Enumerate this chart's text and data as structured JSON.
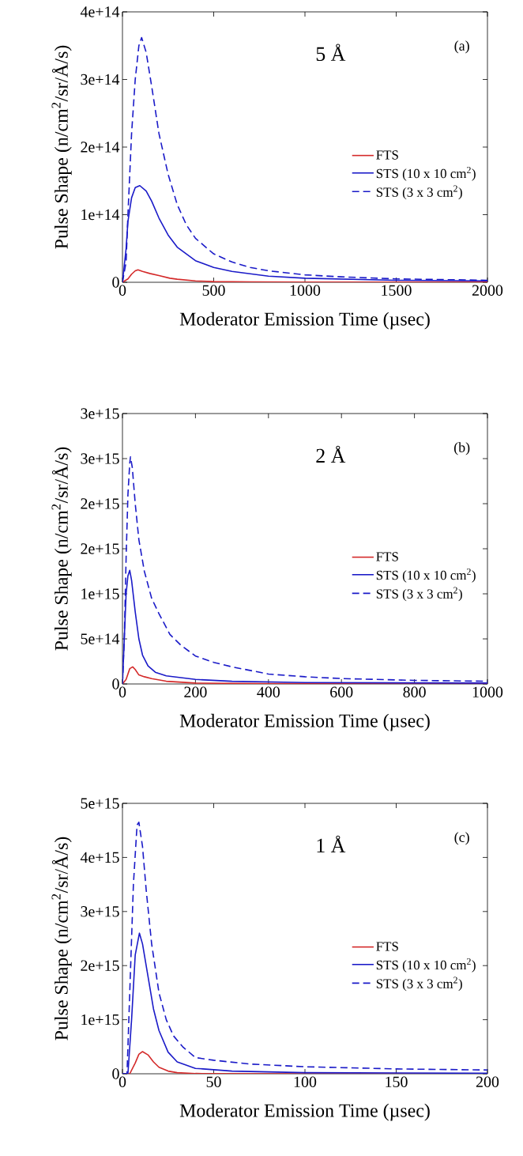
{
  "chart_data": [
    {
      "type": "line",
      "xlabel": "Moderator Emission Time (µsec)",
      "ylabel": "Pulse Shape  (n/cm$^{2}$/sr/Å/s)",
      "annotations": [
        "5 Å",
        "(a)"
      ],
      "legend": "right",
      "xlim": [
        0,
        2000
      ],
      "xticks": [
        0,
        500,
        1000,
        1500,
        2000
      ],
      "ylim": [
        0,
        400000000000000.0
      ],
      "yticks": [
        {
          "value": 0,
          "label": "0"
        },
        {
          "value": 100000000000000.0,
          "label": "1e+14"
        },
        {
          "value": 200000000000000.0,
          "label": "2e+14"
        },
        {
          "value": 300000000000000.0,
          "label": "3e+14"
        },
        {
          "value": 400000000000000.0,
          "label": "4e+14"
        }
      ],
      "series": [
        {
          "name": "FTS",
          "color": "#d42a2a",
          "line_style": "solid",
          "x": [
            0,
            30,
            50,
            70,
            85,
            110,
            150,
            200,
            260,
            300,
            400,
            500,
            700,
            1000,
            2000
          ],
          "values": [
            0,
            5000000000000.0,
            12000000000000.0,
            17000000000000.0,
            18500000000000.0,
            16000000000000.0,
            13000000000000.0,
            10000000000000.0,
            6000000000000.0,
            4500000000000.0,
            2000000000000.0,
            1000000000000.0,
            500000000000.0,
            200000000000.0,
            100000000000.0
          ]
        },
        {
          "name": "STS (10 x 10 cm$^{2}$)",
          "color": "#1a1ac8",
          "line_style": "solid",
          "x": [
            0,
            20,
            30,
            50,
            70,
            95,
            130,
            160,
            200,
            250,
            300,
            400,
            500,
            600,
            800,
            1000,
            1500,
            2000
          ],
          "values": [
            0,
            50000000000000.0,
            90000000000000.0,
            125000000000000.0,
            140000000000000.0,
            143000000000000.0,
            135000000000000.0,
            120000000000000.0,
            95000000000000.0,
            70000000000000.0,
            52000000000000.0,
            32000000000000.0,
            22000000000000.0,
            16000000000000.0,
            9000000000000.0,
            6000000000000.0,
            3000000000000.0,
            2000000000000.0
          ]
        },
        {
          "name": "STS (3 x 3 cm$^{2}$)",
          "color": "#1a1ac8",
          "line_style": "dashed",
          "x": [
            0,
            20,
            30,
            50,
            70,
            90,
            105,
            130,
            160,
            200,
            250,
            300,
            350,
            400,
            500,
            600,
            700,
            800,
            1000,
            1200,
            1500,
            2000
          ],
          "values": [
            0,
            30000000000000.0,
            100000000000000.0,
            220000000000000.0,
            300000000000000.0,
            350000000000000.0,
            362000000000000.0,
            340000000000000.0,
            290000000000000.0,
            220000000000000.0,
            160000000000000.0,
            115000000000000.0,
            85000000000000.0,
            65000000000000.0,
            42000000000000.0,
            30000000000000.0,
            22000000000000.0,
            17000000000000.0,
            11000000000000.0,
            8000000000000.0,
            5000000000000.0,
            3000000000000.0
          ]
        }
      ]
    },
    {
      "type": "line",
      "xlabel": "Moderator Emission Time (µsec)",
      "ylabel": "Pulse Shape  (n/cm$^{2}$/sr/Å/s)",
      "annotations": [
        "2 Å",
        "(b)"
      ],
      "legend": "right",
      "xlim": [
        0,
        1000
      ],
      "xticks": [
        0,
        200,
        400,
        600,
        800,
        1000
      ],
      "ylim": [
        0,
        3000000000000000.0
      ],
      "yticks": [
        {
          "value": 0,
          "label": "0"
        },
        {
          "value": 500000000000000.0,
          "label": "5e+14"
        },
        {
          "value": 1000000000000000.0,
          "label": "1e+15"
        },
        {
          "value": 1500000000000000.0,
          "label": "2e+15"
        },
        {
          "value": 2000000000000000.0,
          "label": "2e+15"
        },
        {
          "value": 2500000000000000.0,
          "label": "3e+15"
        },
        {
          "value": 3000000000000000.0,
          "label": "3e+15"
        }
      ],
      "series": [
        {
          "name": "FTS",
          "color": "#d42a2a",
          "line_style": "solid",
          "x": [
            0,
            10,
            20,
            28,
            35,
            45,
            60,
            80,
            120,
            200,
            400,
            1000
          ],
          "values": [
            0,
            50000000000000.0,
            170000000000000.0,
            190000000000000.0,
            160000000000000.0,
            100000000000000.0,
            80000000000000.0,
            60000000000000.0,
            30000000000000.0,
            10000000000000.0,
            3000000000000.0,
            1000000000000.0
          ]
        },
        {
          "name": "STS (10 x 10 cm$^{2}$)",
          "color": "#1a1ac8",
          "line_style": "solid",
          "x": [
            0,
            5,
            10,
            15,
            20,
            25,
            35,
            45,
            55,
            70,
            90,
            120,
            200,
            300,
            500,
            1000
          ],
          "values": [
            0,
            500000000000000.0,
            1000000000000000.0,
            1200000000000000.0,
            1260000000000000.0,
            1150000000000000.0,
            800000000000000.0,
            500000000000000.0,
            320000000000000.0,
            200000000000000.0,
            130000000000000.0,
            90000000000000.0,
            50000000000000.0,
            30000000000000.0,
            15000000000000.0,
            10000000000000.0
          ]
        },
        {
          "name": "STS (3 x 3 cm$^{2}$)",
          "color": "#1a1ac8",
          "line_style": "dashed",
          "x": [
            0,
            5,
            10,
            15,
            20,
            22,
            27,
            35,
            45,
            60,
            80,
            100,
            130,
            160,
            200,
            250,
            300,
            400,
            500,
            600,
            800,
            1000
          ],
          "values": [
            0,
            500000000000000.0,
            1400000000000000.0,
            2100000000000000.0,
            2450000000000000.0,
            2520000000000000.0,
            2400000000000000.0,
            2000000000000000.0,
            1600000000000000.0,
            1250000000000000.0,
            950000000000000.0,
            780000000000000.0,
            550000000000000.0,
            430000000000000.0,
            310000000000000.0,
            240000000000000.0,
            190000000000000.0,
            110000000000000.0,
            80000000000000.0,
            60000000000000.0,
            40000000000000.0,
            30000000000000.0
          ]
        }
      ]
    },
    {
      "type": "line",
      "xlabel": "Moderator Emission Time (µsec)",
      "ylabel": "Pulse Shape  (n/cm$^{2}$/sr/Å/s)",
      "annotations": [
        "1 Å",
        "(c)"
      ],
      "legend": "right",
      "xlim": [
        0,
        200
      ],
      "xticks": [
        0,
        50,
        100,
        150,
        200
      ],
      "ylim": [
        0,
        5000000000000000.0
      ],
      "yticks": [
        {
          "value": 0,
          "label": "0"
        },
        {
          "value": 1000000000000000.0,
          "label": "1e+15"
        },
        {
          "value": 2000000000000000.0,
          "label": "2e+15"
        },
        {
          "value": 3000000000000000.0,
          "label": "3e+15"
        },
        {
          "value": 4000000000000000.0,
          "label": "4e+15"
        },
        {
          "value": 5000000000000000.0,
          "label": "5e+15"
        }
      ],
      "series": [
        {
          "name": "FTS",
          "color": "#d42a2a",
          "line_style": "solid",
          "x": [
            0,
            4,
            7,
            9,
            11,
            14,
            17,
            20,
            25,
            30,
            40,
            100,
            200
          ],
          "values": [
            0,
            0,
            200000000000000.0,
            360000000000000.0,
            410000000000000.0,
            350000000000000.0,
            220000000000000.0,
            120000000000000.0,
            50000000000000.0,
            20000000000000.0,
            5000000000000.0,
            1000000000000.0,
            0
          ]
        },
        {
          "name": "STS (10 x 10 cm$^{2}$)",
          "color": "#1a1ac8",
          "line_style": "solid",
          "x": [
            0,
            3,
            5,
            7,
            9.3,
            11,
            14,
            17,
            20,
            25,
            30,
            40,
            60,
            100,
            200
          ],
          "values": [
            0,
            0,
            1000000000000000.0,
            2200000000000000.0,
            2600000000000000.0,
            2400000000000000.0,
            1800000000000000.0,
            1200000000000000.0,
            800000000000000.0,
            400000000000000.0,
            220000000000000.0,
            100000000000000.0,
            50000000000000.0,
            20000000000000.0,
            10000000000000.0
          ]
        },
        {
          "name": "STS (3 x 3 cm$^{2}$)",
          "color": "#1a1ac8",
          "line_style": "dashed",
          "x": [
            0,
            2.5,
            4,
            6,
            8,
            9,
            11,
            13,
            16,
            20,
            24,
            28,
            33,
            40,
            50,
            70,
            100,
            150,
            200
          ],
          "values": [
            0,
            0,
            1500000000000000.0,
            3500000000000000.0,
            4600000000000000.0,
            4650000000000000.0,
            4200000000000000.0,
            3400000000000000.0,
            2400000000000000.0,
            1500000000000000.0,
            1000000000000000.0,
            700000000000000.0,
            500000000000000.0,
            300000000000000.0,
            250000000000000.0,
            180000000000000.0,
            130000000000000.0,
            90000000000000.0,
            70000000000000.0
          ]
        }
      ]
    }
  ]
}
